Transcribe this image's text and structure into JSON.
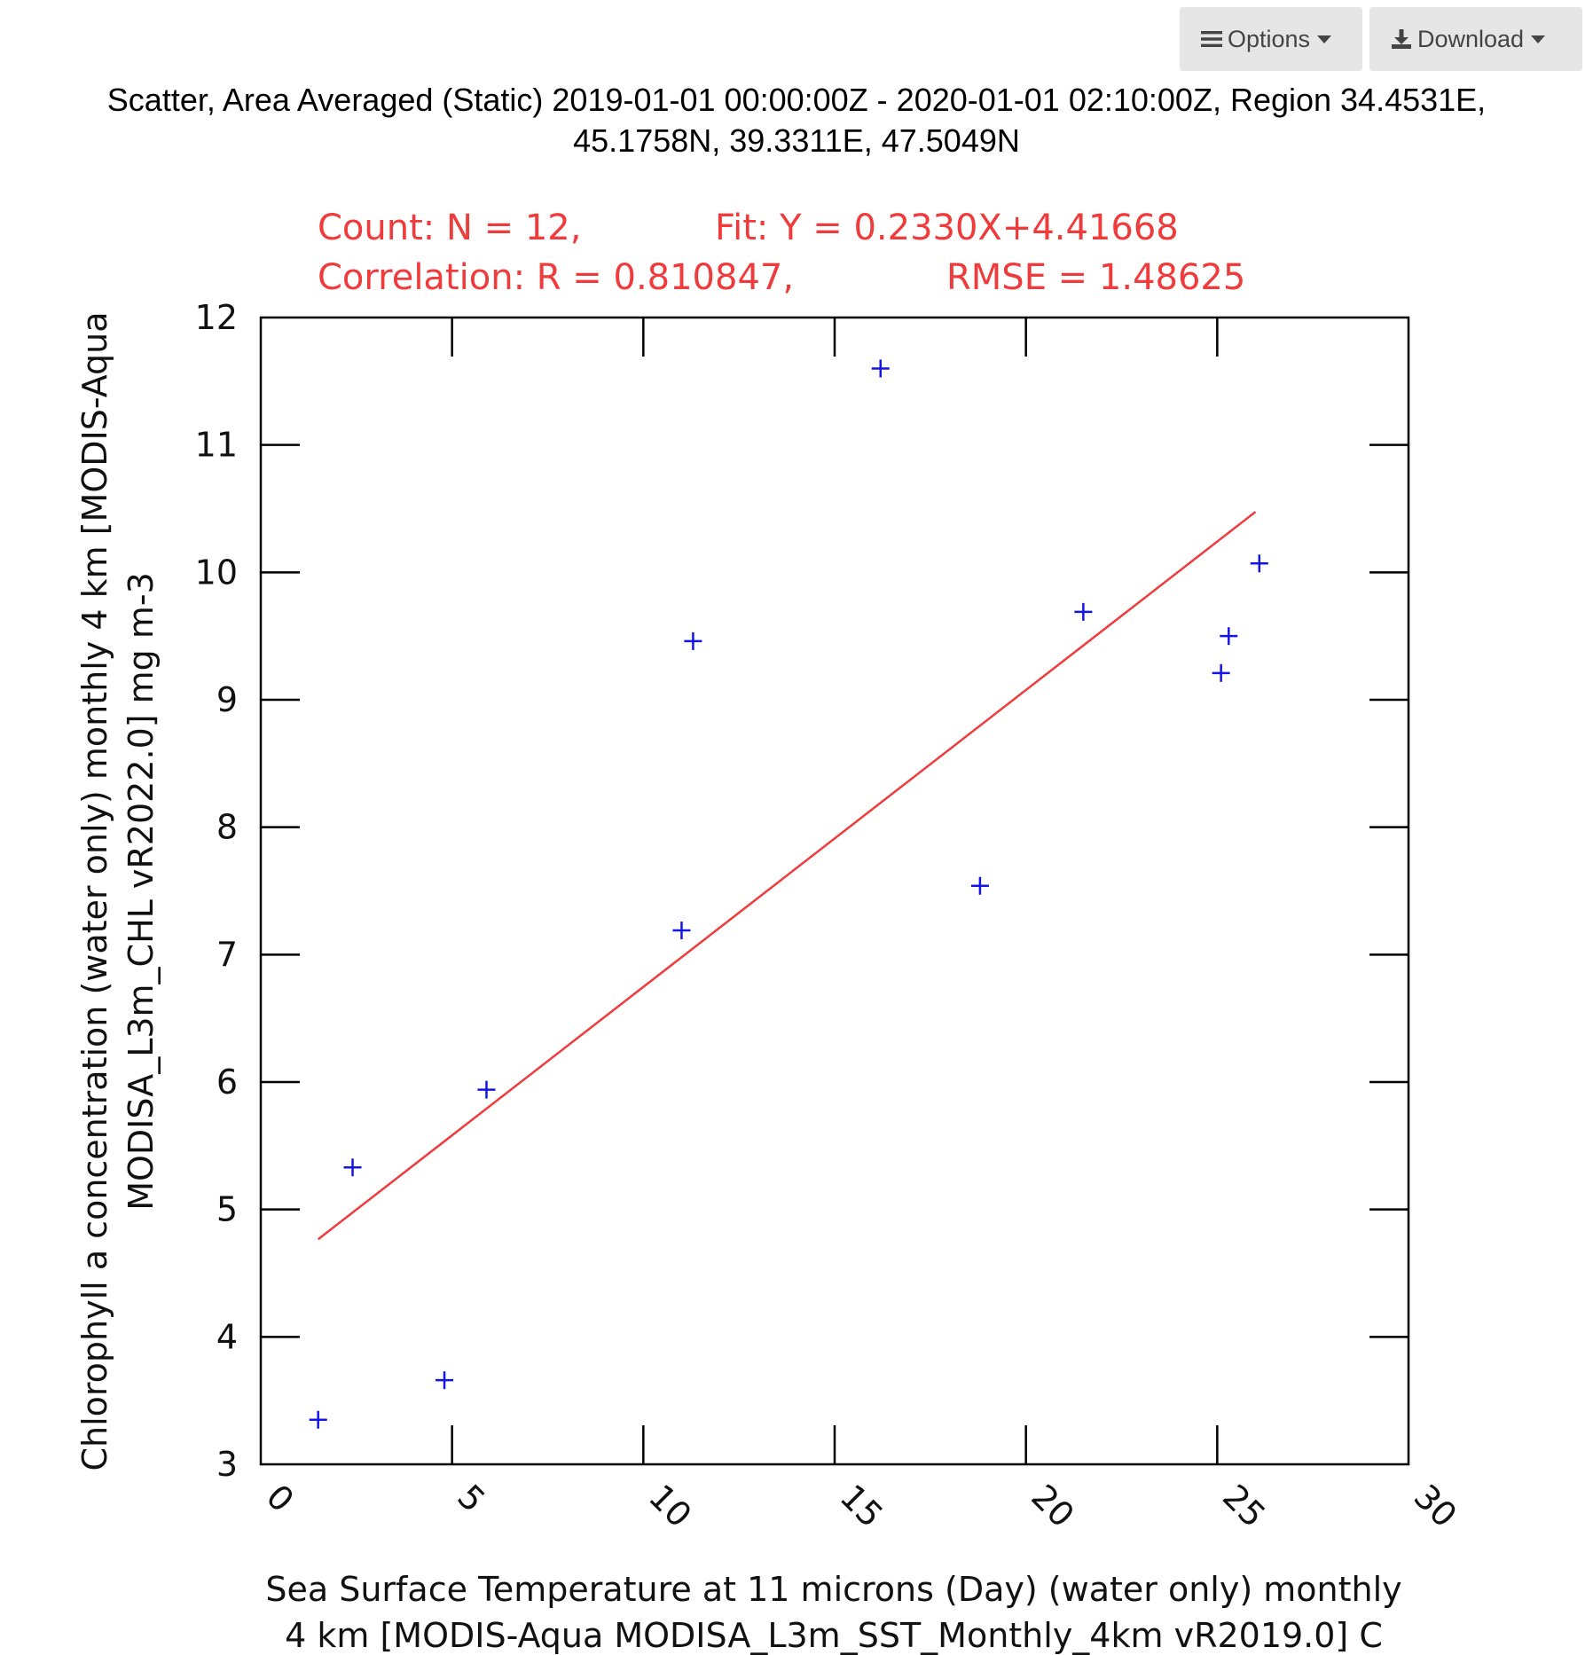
{
  "toolbar": {
    "options_label": "Options",
    "download_label": "Download",
    "options_icon": "menu-icon",
    "download_icon": "download-icon"
  },
  "page_title": {
    "line1": "Scatter, Area Averaged (Static) 2019-01-01 00:00:00Z - 2020-01-01 02:10:00Z, Region 34.4531E,",
    "line2": "45.1758N, 39.3311E, 47.5049N"
  },
  "chart_data": {
    "type": "scatter",
    "stats": {
      "count": "Count: N = 12,",
      "fit": "Fit: Y = 0.2330X+4.41668",
      "correlation": "Correlation: R = 0.810847,",
      "rmse": "RMSE = 1.48625"
    },
    "xlabel_line1": "Sea Surface Temperature at 11 microns (Day) (water only) monthly",
    "xlabel_line2": "4 km [MODIS-Aqua MODISA_L3m_SST_Monthly_4km vR2019.0] C",
    "ylabel_line1": "Chlorophyll a concentration (water only) monthly 4 km [MODIS-Aqua",
    "ylabel_line2": "MODISA_L3m_CHL vR2022.0] mg m-3",
    "xlim": [
      0,
      30
    ],
    "ylim": [
      3,
      12
    ],
    "xticks": [
      0,
      5,
      10,
      15,
      20,
      25,
      30
    ],
    "yticks": [
      3,
      4,
      5,
      6,
      7,
      8,
      9,
      10,
      11,
      12
    ],
    "points": [
      {
        "x": 1.5,
        "y": 3.35
      },
      {
        "x": 2.4,
        "y": 5.33
      },
      {
        "x": 4.8,
        "y": 3.66
      },
      {
        "x": 5.9,
        "y": 5.94
      },
      {
        "x": 11.0,
        "y": 7.19
      },
      {
        "x": 11.3,
        "y": 9.46
      },
      {
        "x": 16.2,
        "y": 11.6
      },
      {
        "x": 18.8,
        "y": 7.54
      },
      {
        "x": 21.5,
        "y": 9.69
      },
      {
        "x": 25.1,
        "y": 9.21
      },
      {
        "x": 25.3,
        "y": 9.5
      },
      {
        "x": 26.1,
        "y": 10.07
      }
    ],
    "fit_line": {
      "slope": 0.233,
      "intercept": 4.41668,
      "x_start": 1.5,
      "x_end": 26.0
    },
    "point_color": "#1414e6",
    "fit_color": "#ef3b3b",
    "marker": "plus",
    "grid": false
  }
}
